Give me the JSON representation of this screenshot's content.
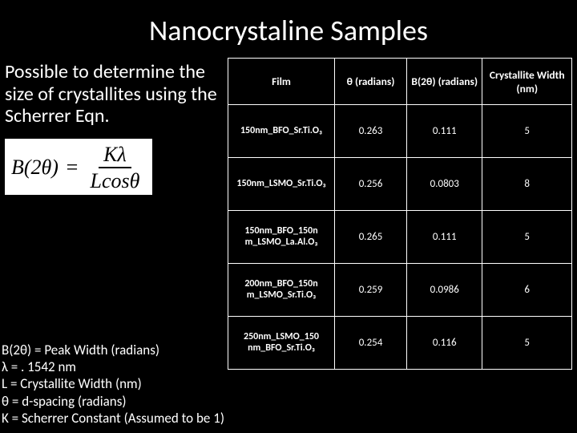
{
  "title": "Nanocrystaline Samples",
  "intro": "Possible to determine the size of crystallites using the Scherrer Eqn.",
  "equation": {
    "lhs": "B(2θ)",
    "eq": "=",
    "num": "Kλ",
    "den": "Lcosθ"
  },
  "definitions": [
    "B(2θ) = Peak Width (radians)",
    "λ = . 1542 nm",
    "L = Crystallite Width (nm)",
    "θ = d-spacing (radians)",
    "K = Scherrer Constant (Assumed to be 1)"
  ],
  "table": {
    "headers": {
      "film": "Film",
      "theta": "θ (radians)",
      "b2theta": "B(2θ) (radians)",
      "width": "Crystallite Width (nm)"
    },
    "rows": [
      {
        "film": "150nm_BFO_Sr.Ti.O₃",
        "theta": "0.263",
        "b2theta": "0.111",
        "width": "5"
      },
      {
        "film": "150nm_LSMO_Sr.Ti.O₃",
        "theta": "0.256",
        "b2theta": "0.0803",
        "width": "8"
      },
      {
        "film": "150nm_BFO_150n m_LSMO_La.Al.O₃",
        "theta": "0.265",
        "b2theta": "0.111",
        "width": "5"
      },
      {
        "film": "200nm_BFO_150n m_LSMO_Sr.Ti.O₃",
        "theta": "0.259",
        "b2theta": "0.0986",
        "width": "6"
      },
      {
        "film": "250nm_LSMO_150 nm_BFO_Sr.Ti.O₃",
        "theta": "0.254",
        "b2theta": "0.116",
        "width": "5"
      }
    ]
  },
  "colors": {
    "background": "#000000",
    "text": "#ffffff",
    "eq_bg": "#ffffff",
    "eq_text": "#000000",
    "table_border": "#ffffff"
  }
}
